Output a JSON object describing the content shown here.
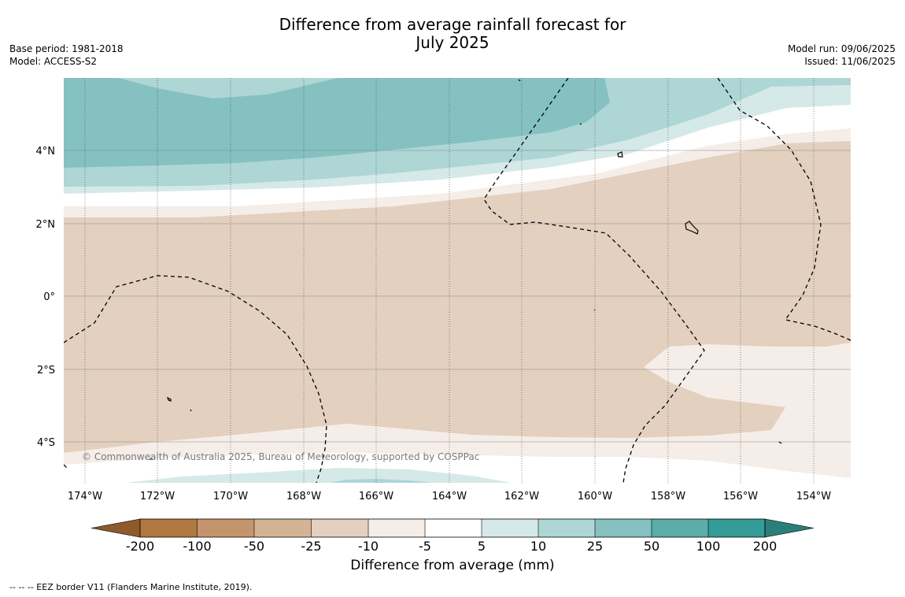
{
  "title": {
    "line1": "Difference from average rainfall forecast for",
    "line2": "July 2025"
  },
  "info_left": {
    "base_period": "Base period: 1981-2018",
    "model": "Model: ACCESS-S2"
  },
  "info_right": {
    "model_run": "Model run: 09/06/2025",
    "issued": "Issued: 11/06/2025"
  },
  "map": {
    "lon_range": [
      -174.6,
      -153.0
    ],
    "lat_range": [
      -5.0,
      5.9
    ],
    "lat_ticks": [
      {
        "value": 4,
        "label": "4°N"
      },
      {
        "value": 2,
        "label": "2°N"
      },
      {
        "value": 0,
        "label": "0°"
      },
      {
        "value": -2,
        "label": "2°S"
      },
      {
        "value": -4,
        "label": "4°S"
      }
    ],
    "lon_ticks": [
      {
        "value": -174,
        "label": "174°W"
      },
      {
        "value": -172,
        "label": "172°W"
      },
      {
        "value": -170,
        "label": "170°W"
      },
      {
        "value": -168,
        "label": "168°W"
      },
      {
        "value": -166,
        "label": "166°W"
      },
      {
        "value": -164,
        "label": "164°W"
      },
      {
        "value": -162,
        "label": "162°W"
      },
      {
        "value": -160,
        "label": "160°W"
      },
      {
        "value": -158,
        "label": "158°W"
      },
      {
        "value": -156,
        "label": "156°W"
      },
      {
        "value": -154,
        "label": "154°W"
      }
    ],
    "copyright": "© Commonwealth of Australia 2025, Bureau of Meteorology, supported by COSPPac"
  },
  "colorbar": {
    "boundaries": [
      "-200",
      "-100",
      "-50",
      "-25",
      "-10",
      "-5",
      "5",
      "10",
      "25",
      "50",
      "100",
      "200"
    ],
    "colors": [
      "#8c5a2b",
      "#b07840",
      "#c4956c",
      "#d4b394",
      "#e3d0bf",
      "#f5ede8",
      "#ffffff",
      "#d5e9e8",
      "#add6d5",
      "#84c1c0",
      "#5cacaa",
      "#359b98",
      "#2a7f7c"
    ],
    "label": "Difference from average (mm)"
  },
  "footer": {
    "eez_note": "--  --  -- EEZ border V11 (Flanders Marine Institute, 2019)."
  }
}
